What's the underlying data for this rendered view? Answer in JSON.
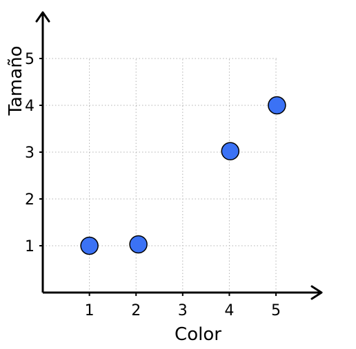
{
  "chart_data": {
    "type": "scatter",
    "title": "",
    "xlabel": "Color",
    "ylabel": "Tamaño",
    "xlim": [
      0,
      6
    ],
    "ylim": [
      0,
      6
    ],
    "x_ticks": [
      1,
      2,
      3,
      4,
      5
    ],
    "y_ticks": [
      1,
      2,
      3,
      4,
      5
    ],
    "grid": true,
    "point_color": "#3b72f5",
    "series": [
      {
        "points": [
          {
            "x": 1,
            "y": 1
          },
          {
            "x": 2.05,
            "y": 1.03
          },
          {
            "x": 4.02,
            "y": 3.02
          },
          {
            "x": 5.02,
            "y": 4
          }
        ]
      }
    ]
  }
}
